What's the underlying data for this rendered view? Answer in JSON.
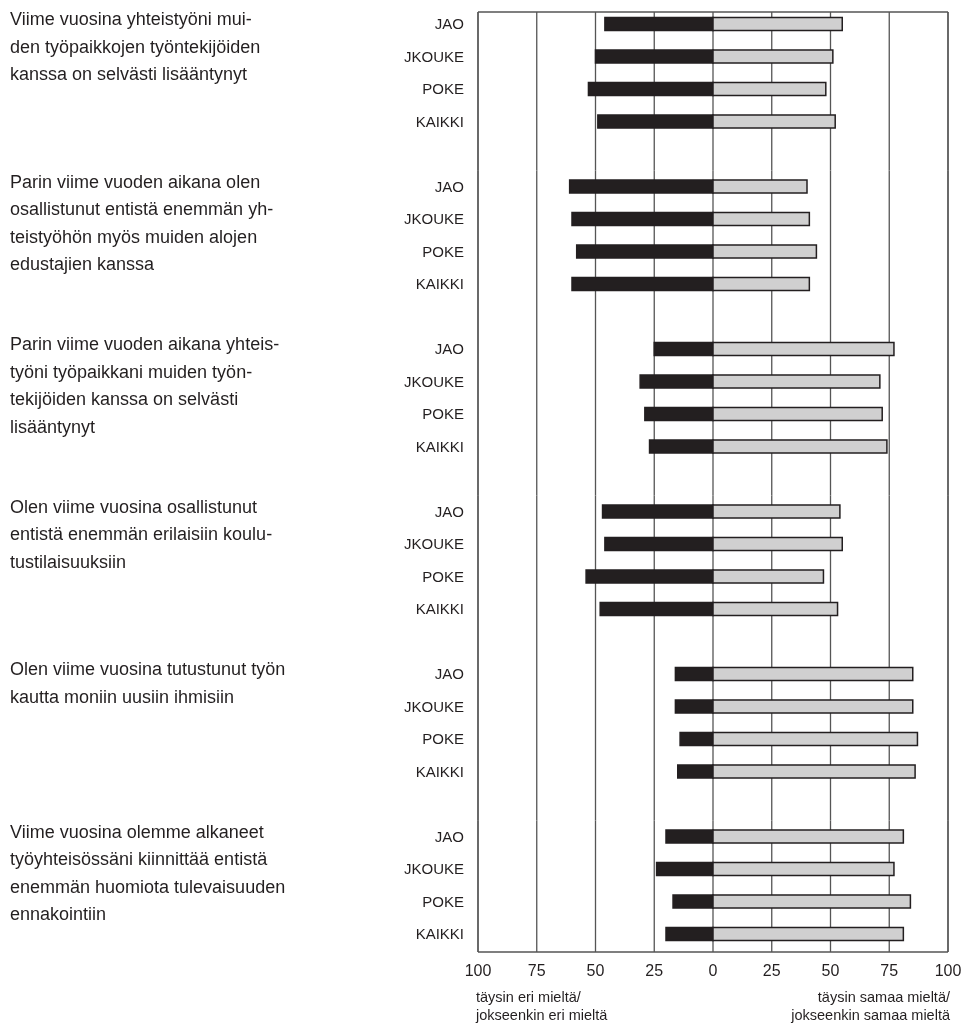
{
  "chart_data": [
    {
      "type": "bar",
      "orientation": "horizontal",
      "stacked": true,
      "grid": "x",
      "tick_labels": "y",
      "ylabel": "Viime vuosina yhteistyöni mui-\nden työpaikkojen työntekijöiden\nkanssa on selvästi lisääntynyt",
      "categories": [
        "JAO",
        "JKOUKE",
        "POKE",
        "KAIKKI"
      ],
      "xlim": [
        -100,
        100
      ],
      "xticks": [
        {
          "value": -100,
          "label": null
        },
        {
          "value": -75,
          "label": null
        },
        {
          "value": -50,
          "label": null
        },
        {
          "value": -25,
          "label": null
        },
        {
          "value": 0,
          "label": null
        },
        {
          "value": 25,
          "label": null
        },
        {
          "value": 50,
          "label": null
        },
        {
          "value": 75,
          "label": null
        },
        {
          "value": 100,
          "label": null
        }
      ],
      "series": [
        {
          "color": "#231f20",
          "values": [
            -46,
            -50,
            -53,
            -49
          ]
        },
        {
          "color": "#d0d0d0",
          "values": [
            55,
            51,
            48,
            52
          ]
        }
      ]
    },
    {
      "type": "bar",
      "orientation": "horizontal",
      "stacked": true,
      "grid": "x",
      "tick_labels": "y",
      "ylabel": "Parin viime vuoden aikana olen\nosallistunut entistä enemmän yh-\nteistyöhön myös muiden alojen\nedustajien kanssa",
      "categories": [
        "JAO",
        "JKOUKE",
        "POKE",
        "KAIKKI"
      ],
      "xlim": [
        -100,
        100
      ],
      "xticks": [
        {
          "value": -100,
          "label": null
        },
        {
          "value": -75,
          "label": null
        },
        {
          "value": -50,
          "label": null
        },
        {
          "value": -25,
          "label": null
        },
        {
          "value": 0,
          "label": null
        },
        {
          "value": 25,
          "label": null
        },
        {
          "value": 50,
          "label": null
        },
        {
          "value": 75,
          "label": null
        },
        {
          "value": 100,
          "label": null
        }
      ],
      "series": [
        {
          "color": "#231f20",
          "values": [
            -61,
            -60,
            -58,
            -60
          ]
        },
        {
          "color": "#d0d0d0",
          "values": [
            40,
            41,
            44,
            41
          ]
        }
      ]
    },
    {
      "type": "bar",
      "orientation": "horizontal",
      "stacked": true,
      "grid": "x",
      "tick_labels": "y",
      "ylabel": "Parin viime vuoden aikana yhteis-\ntyöni työpaikkani muiden työn-\ntekijöiden kanssa on selvästi\nlisääntynyt",
      "categories": [
        "JAO",
        "JKOUKE",
        "POKE",
        "KAIKKI"
      ],
      "xlim": [
        -100,
        100
      ],
      "xticks": [
        {
          "value": -100,
          "label": null
        },
        {
          "value": -75,
          "label": null
        },
        {
          "value": -50,
          "label": null
        },
        {
          "value": -25,
          "label": null
        },
        {
          "value": 0,
          "label": null
        },
        {
          "value": 25,
          "label": null
        },
        {
          "value": 50,
          "label": null
        },
        {
          "value": 75,
          "label": null
        },
        {
          "value": 100,
          "label": null
        }
      ],
      "series": [
        {
          "color": "#231f20",
          "values": [
            -25,
            -31,
            -29,
            -27
          ]
        },
        {
          "color": "#d0d0d0",
          "values": [
            77,
            71,
            72,
            74
          ]
        }
      ]
    },
    {
      "type": "bar",
      "orientation": "horizontal",
      "stacked": true,
      "grid": "x",
      "tick_labels": "y",
      "ylabel": "Olen viime vuosina osallistunut\nentistä enemmän erilaisiin koulu-\ntustilaisuuksiin",
      "categories": [
        "JAO",
        "JKOUKE",
        "POKE",
        "KAIKKI"
      ],
      "xlim": [
        -100,
        100
      ],
      "xticks": [
        {
          "value": -100,
          "label": null
        },
        {
          "value": -75,
          "label": null
        },
        {
          "value": -50,
          "label": null
        },
        {
          "value": -25,
          "label": null
        },
        {
          "value": 0,
          "label": null
        },
        {
          "value": 25,
          "label": null
        },
        {
          "value": 50,
          "label": null
        },
        {
          "value": 75,
          "label": null
        },
        {
          "value": 100,
          "label": null
        }
      ],
      "series": [
        {
          "color": "#231f20",
          "values": [
            -47,
            -46,
            -54,
            -48
          ]
        },
        {
          "color": "#d0d0d0",
          "values": [
            54,
            55,
            47,
            53
          ]
        }
      ]
    },
    {
      "type": "bar",
      "orientation": "horizontal",
      "stacked": true,
      "grid": "x",
      "tick_labels": "y",
      "ylabel": "Olen viime vuosina tutustunut työn\nkautta moniin uusiin ihmisiin",
      "categories": [
        "JAO",
        "JKOUKE",
        "POKE",
        "KAIKKI"
      ],
      "xlim": [
        -100,
        100
      ],
      "xticks": [
        {
          "value": -100,
          "label": null
        },
        {
          "value": -75,
          "label": null
        },
        {
          "value": -50,
          "label": null
        },
        {
          "value": -25,
          "label": null
        },
        {
          "value": 0,
          "label": null
        },
        {
          "value": 25,
          "label": null
        },
        {
          "value": 50,
          "label": null
        },
        {
          "value": 75,
          "label": null
        },
        {
          "value": 100,
          "label": null
        }
      ],
      "series": [
        {
          "color": "#231f20",
          "values": [
            -16,
            -16,
            -14,
            -15
          ]
        },
        {
          "color": "#d0d0d0",
          "values": [
            85,
            85,
            87,
            86
          ]
        }
      ]
    },
    {
      "type": "bar",
      "orientation": "horizontal",
      "stacked": true,
      "grid": "x",
      "ylabel": "Viime vuosina olemme alkaneet\ntyöyhteisössäni kiinnittää entistä\nenemmän huomiota tulevaisuuden\nennakointiin",
      "categories": [
        "JAO",
        "JKOUKE",
        "POKE",
        "KAIKKI"
      ],
      "xlim": [
        -100,
        100
      ],
      "xticks": [
        {
          "value": -100,
          "label": "100"
        },
        {
          "value": -75,
          "label": "75"
        },
        {
          "value": -50,
          "label": "50"
        },
        {
          "value": -25,
          "label": "25"
        },
        0,
        25,
        50,
        75,
        100
      ],
      "annotations": [
        "täysin eri mieltä/\njokseenkin eri mieltä",
        "täysin samaa mieltä/\njokseenkin samaa mieltä"
      ],
      "series": [
        {
          "color": "#231f20",
          "values": [
            -20,
            -24,
            -17,
            -20
          ]
        },
        {
          "color": "#d0d0d0",
          "values": [
            81,
            77,
            84,
            81
          ]
        }
      ]
    }
  ]
}
